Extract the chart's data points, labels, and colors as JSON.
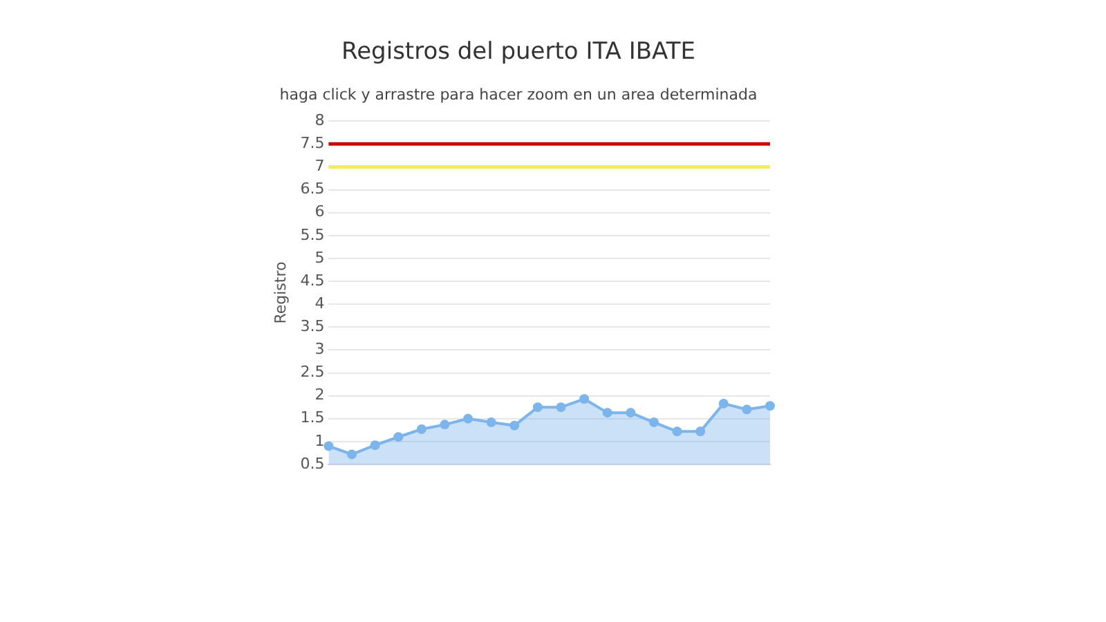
{
  "chart_data": {
    "type": "area",
    "title": "Registros del puerto ITA IBATE",
    "subtitle": "haga click y arrastre para hacer zoom en un area determinada",
    "ylabel": "Registro",
    "categories": [
      null,
      null,
      null,
      null,
      null,
      null,
      null,
      null,
      null,
      null,
      null,
      null,
      null,
      null,
      null,
      null,
      null,
      null,
      null,
      null
    ],
    "series": [
      {
        "color": "#7cb5ec",
        "values": [
          0.9,
          0.72,
          0.92,
          1.1,
          1.27,
          1.37,
          1.5,
          1.42,
          1.35,
          1.75,
          1.75,
          1.93,
          1.63,
          1.63,
          1.42,
          1.22,
          1.22,
          1.83,
          1.7,
          1.78
        ]
      }
    ],
    "ylim": [
      0.5,
      8
    ],
    "yticks": [
      0.5,
      1,
      1.5,
      2,
      2.5,
      3,
      3.5,
      4,
      4.5,
      5,
      5.5,
      6,
      6.5,
      7,
      7.5,
      8
    ],
    "ref_lines": [
      {
        "axis": "y",
        "value": 7.5,
        "color": "#cc0000"
      },
      {
        "axis": "y",
        "value": 7,
        "color": "#f5ec5a"
      }
    ],
    "grid": "y",
    "legend": false,
    "marker": "circle"
  }
}
